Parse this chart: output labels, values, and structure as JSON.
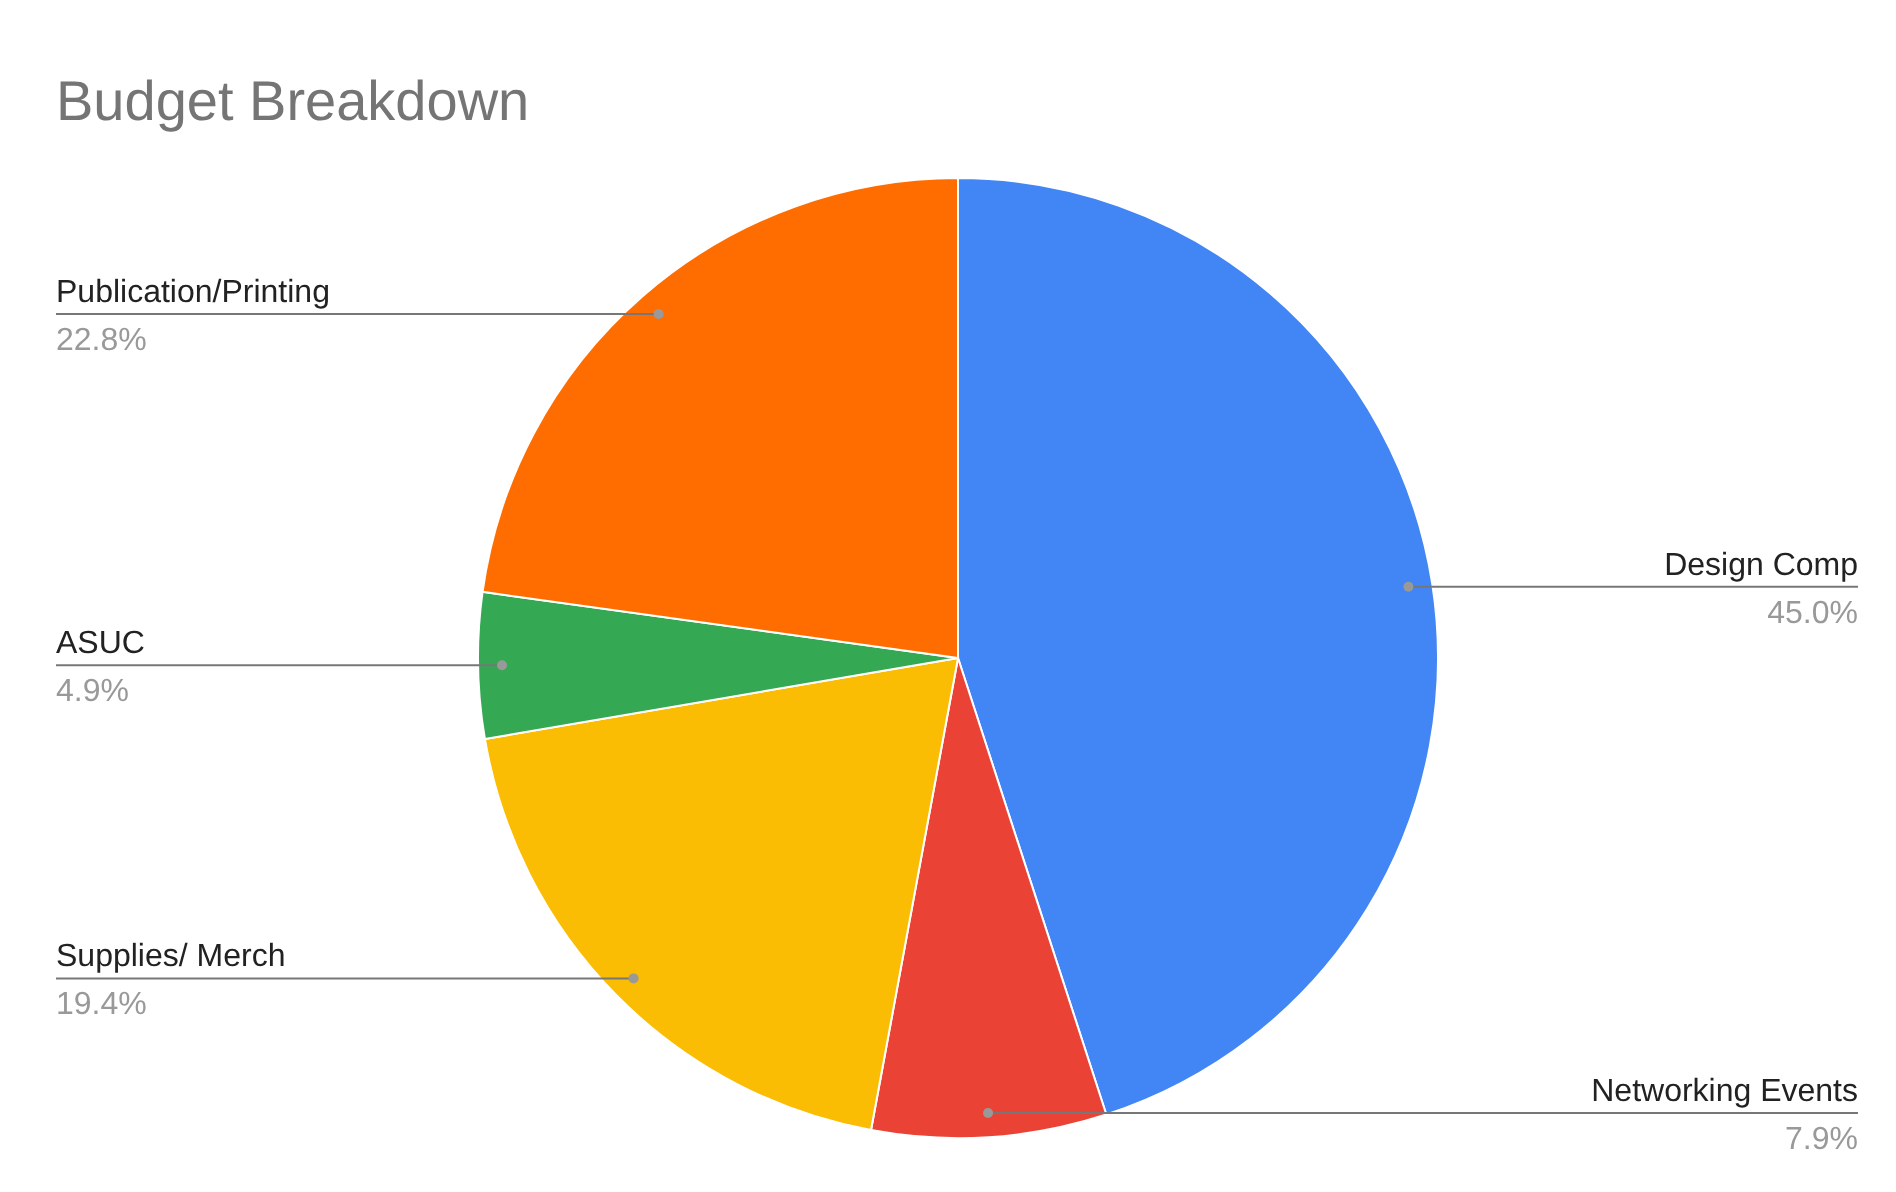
{
  "chart_data": {
    "type": "pie",
    "title": "Budget Breakdown",
    "categories": [
      "Design Comp",
      "Networking Events",
      "Supplies/ Merch",
      "ASUC",
      "Publication/Printing"
    ],
    "values": [
      45.0,
      7.9,
      19.4,
      4.9,
      22.8
    ],
    "colors": [
      "#4285f4",
      "#ea4335",
      "#fbbc04",
      "#34a853",
      "#ff6d01"
    ],
    "value_labels": [
      "45.0%",
      "7.9%",
      "19.4%",
      "4.9%",
      "22.8%"
    ]
  }
}
